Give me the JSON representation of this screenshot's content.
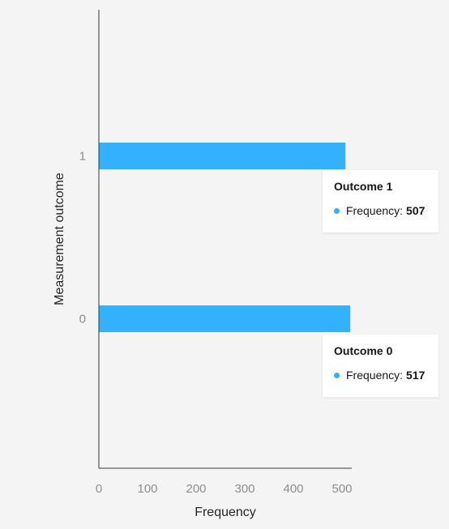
{
  "chart_data": {
    "type": "bar",
    "orientation": "horizontal",
    "categories": [
      "0",
      "1"
    ],
    "values": [
      517,
      507
    ],
    "xlabel": "Frequency",
    "ylabel": "Measurement outcome",
    "xlim": [
      0,
      520
    ],
    "xticks": [
      "0",
      "100",
      "200",
      "300",
      "400",
      "500"
    ],
    "grid": false,
    "bar_color": "#33b1ff"
  },
  "tooltips": [
    {
      "title": "Outcome 1",
      "label": "Frequency:",
      "value": "507"
    },
    {
      "title": "Outcome 0",
      "label": "Frequency:",
      "value": "517"
    }
  ]
}
